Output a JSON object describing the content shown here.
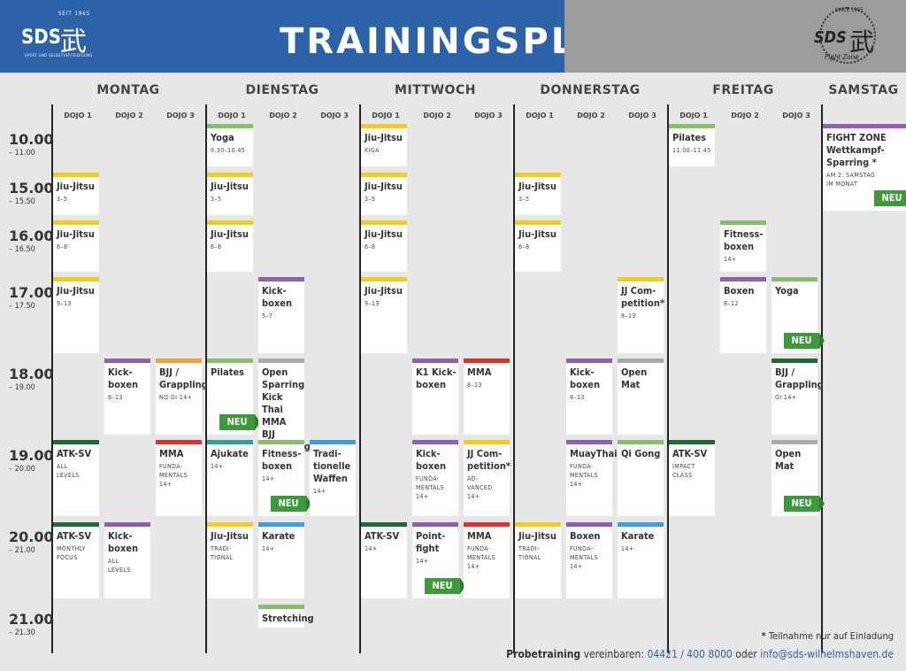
{
  "header": {
    "title": "TRAININGSPLAN",
    "left_logo": {
      "seit": "SEIT 1965",
      "sds": "SDS",
      "kanji": "武",
      "sub": "SPORT UND SELBSTVERTEIDIGUNG"
    },
    "right_logo": {
      "since": "SINCE 1965",
      "sds": "SDS",
      "kanji": "武",
      "fz": "Fight Zone"
    }
  },
  "days": [
    "MONTAG",
    "DIENSTAG",
    "MITTWOCH",
    "DONNERSTAG",
    "FREITAG",
    "SAMSTAG"
  ],
  "dojos": [
    "DOJO 1",
    "DOJO 2",
    "DOJO 3"
  ],
  "times": [
    {
      "start": "10.00",
      "end": "– 11.00"
    },
    {
      "start": "15.00",
      "end": "– 15.50"
    },
    {
      "start": "16.00",
      "end": "– 16.50"
    },
    {
      "start": "17.00",
      "end": "– 17.50"
    },
    {
      "start": "18.00",
      "end": "– 19.00"
    },
    {
      "start": "19.00",
      "end": "– 20.00"
    },
    {
      "start": "20.00",
      "end": "– 21.00"
    },
    {
      "start": "21.00",
      "end": "– 21.30"
    }
  ],
  "colors": {
    "yellow": "#f3cd1e",
    "green": "#86c06a",
    "purple": "#8d5fae",
    "orange": "#f0a13a",
    "grey": "#aaaaaa",
    "red": "#e1302b",
    "teal": "#2aa39a",
    "darkgreen": "#1e6b33",
    "blue": "#3a9ee0",
    "neu": "#3c9a3a"
  },
  "classes": [
    {
      "name": "Yoga",
      "sub": "9.30–10.45",
      "color": "green"
    },
    {
      "name": "Jiu-Jitsu",
      "sub": "KIGA",
      "color": "yellow"
    },
    {
      "name": "Pilates",
      "sub": "11.00–11.45",
      "color": "green"
    },
    {
      "name": "FIGHT ZONE\nWettkampf-\nSparring *",
      "sub": "AM 2. SAMSTAG\nIM MONAT",
      "color": "purple",
      "neu": "NEU"
    },
    {
      "name": "Jiu-Jitsu",
      "sub": "3–5",
      "color": "yellow"
    },
    {
      "name": "Jiu-Jitsu",
      "sub": "3–5",
      "color": "yellow"
    },
    {
      "name": "Jiu-Jitsu",
      "sub": "3–5",
      "color": "yellow"
    },
    {
      "name": "Jiu-Jitsu",
      "sub": "3–5",
      "color": "yellow"
    },
    {
      "name": "Jiu-Jitsu",
      "sub": "6–8",
      "color": "yellow"
    },
    {
      "name": "Jiu-Jitsu",
      "sub": "6–8",
      "color": "yellow"
    },
    {
      "name": "Jiu-Jitsu",
      "sub": "6–8",
      "color": "yellow"
    },
    {
      "name": "Jiu-Jitsu",
      "sub": "6–8",
      "color": "yellow"
    },
    {
      "name": "Fitness-\nboxen",
      "sub": "14+",
      "color": "green"
    },
    {
      "name": "Jiu-Jitsu",
      "sub": "9–13",
      "color": "yellow"
    },
    {
      "name": "Kick-\nboxen",
      "sub": "5–7",
      "color": "purple"
    },
    {
      "name": "Jiu-Jitsu",
      "sub": "9–13",
      "color": "yellow"
    },
    {
      "name": "JJ Com-\npetition*",
      "sub": "8–13",
      "color": "yellow"
    },
    {
      "name": "Boxen",
      "sub": "8–12",
      "color": "purple"
    },
    {
      "name": "Yoga",
      "sub": "",
      "color": "green",
      "neu": "NEU"
    },
    {
      "name": "Kick-\nboxen",
      "sub": "8–13",
      "color": "purple"
    },
    {
      "name": "BJJ /\nGrappling",
      "sub": "NO GI 14+",
      "color": "orange"
    },
    {
      "name": "Pilates",
      "sub": "",
      "color": "green",
      "neu": "NEU"
    },
    {
      "name": "Open Sparring\nKick Thai MMA\nBJJ Grappling",
      "sub": "",
      "color": "grey"
    },
    {
      "name": "K1 Kick-\nboxen",
      "sub": "",
      "color": "purple"
    },
    {
      "name": "MMA",
      "sub": "8–13",
      "color": "red"
    },
    {
      "name": "Kick-\nboxen",
      "sub": "8–13",
      "color": "purple"
    },
    {
      "name": "Open Mat",
      "sub": "",
      "color": "grey"
    },
    {
      "name": "BJJ /\nGrappling",
      "sub": "GI 14+",
      "color": "darkgreen"
    },
    {
      "name": "ATK-SV",
      "sub": "ALL\nLEVELS",
      "color": "darkgreen"
    },
    {
      "name": "MMA",
      "sub": "FUNDA-\nMENTALS\n14+",
      "color": "red"
    },
    {
      "name": "Ajukate",
      "sub": "14+",
      "color": "teal"
    },
    {
      "name": "Fitness-\nboxen",
      "sub": "14+",
      "color": "green",
      "neu": "NEU"
    },
    {
      "name": "Tradi-\ntionelle\nWaffen",
      "sub": "14+",
      "color": "blue"
    },
    {
      "name": "Kick-\nboxen",
      "sub": "FUNDA-\nMENTALS\n14+",
      "color": "purple"
    },
    {
      "name": "JJ Com-\npetition*",
      "sub": "AD-\nVANCED\n14+",
      "color": "yellow"
    },
    {
      "name": "MuayThai",
      "sub": "FUNDA-\nMENTALS\n14+",
      "color": "purple"
    },
    {
      "name": "Qi Gong",
      "sub": "",
      "color": "green"
    },
    {
      "name": "ATK-SV",
      "sub": "IMPACT\nCLASS",
      "color": "darkgreen"
    },
    {
      "name": "Open Mat",
      "sub": "",
      "color": "grey",
      "neu": "NEU"
    },
    {
      "name": "ATK-SV",
      "sub": "MONTHLY\nFOCUS",
      "color": "darkgreen"
    },
    {
      "name": "Kick-\nboxen",
      "sub": "ALL\nLEVELS",
      "color": "purple"
    },
    {
      "name": "Jiu-Jitsu",
      "sub": "TRADI-\nTIONAL",
      "color": "yellow"
    },
    {
      "name": "Karate",
      "sub": "14+",
      "color": "blue"
    },
    {
      "name": "ATK-SV",
      "sub": "14+",
      "color": "darkgreen"
    },
    {
      "name": "Point-\nfight",
      "sub": "14+",
      "color": "purple",
      "neu": "NEU"
    },
    {
      "name": "MMA",
      "sub": "FUNDA-\nMENTALS\n14+",
      "color": "red"
    },
    {
      "name": "Jiu-Jitsu",
      "sub": "TRADI-\nTIONAL",
      "color": "yellow"
    },
    {
      "name": "Boxen",
      "sub": "FUNDA-\nMENTALS\n14+",
      "color": "purple"
    },
    {
      "name": "Karate",
      "sub": "14+",
      "color": "blue"
    },
    {
      "name": "Stretching",
      "sub": "",
      "color": "green"
    }
  ],
  "footer": {
    "note_star": "*",
    "note": "Teilnahme nur auf Einladung",
    "probe": "Probetraining",
    "text1": "vereinbaren:",
    "phone": "04421 / 400 8000",
    "text2": "oder",
    "email": "info@sds-wilhelmshaven.de"
  }
}
